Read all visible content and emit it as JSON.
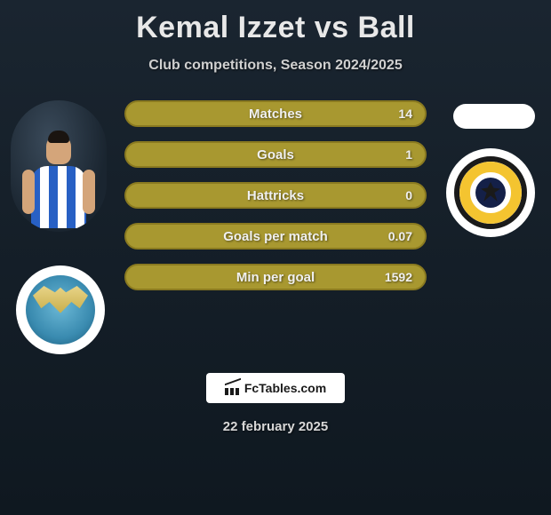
{
  "header": {
    "title": "Kemal Izzet vs Ball",
    "subtitle": "Club competitions, Season 2024/2025"
  },
  "stats": {
    "rows": [
      {
        "label": "Matches",
        "left": "",
        "right": "14"
      },
      {
        "label": "Goals",
        "left": "",
        "right": "1"
      },
      {
        "label": "Hattricks",
        "left": "",
        "right": "0"
      },
      {
        "label": "Goals per match",
        "left": "",
        "right": "0.07"
      },
      {
        "label": "Min per goal",
        "left": "",
        "right": "1592"
      }
    ],
    "bar_color": "#a89830",
    "bar_border_color": "#8a7a20",
    "text_color": "#f0f0f0"
  },
  "footer": {
    "brand": "FcTables.com",
    "date": "22 february 2025"
  },
  "colors": {
    "background_top": "#1a2530",
    "background_bottom": "#0f1820",
    "title_color": "#e8e8e8"
  }
}
